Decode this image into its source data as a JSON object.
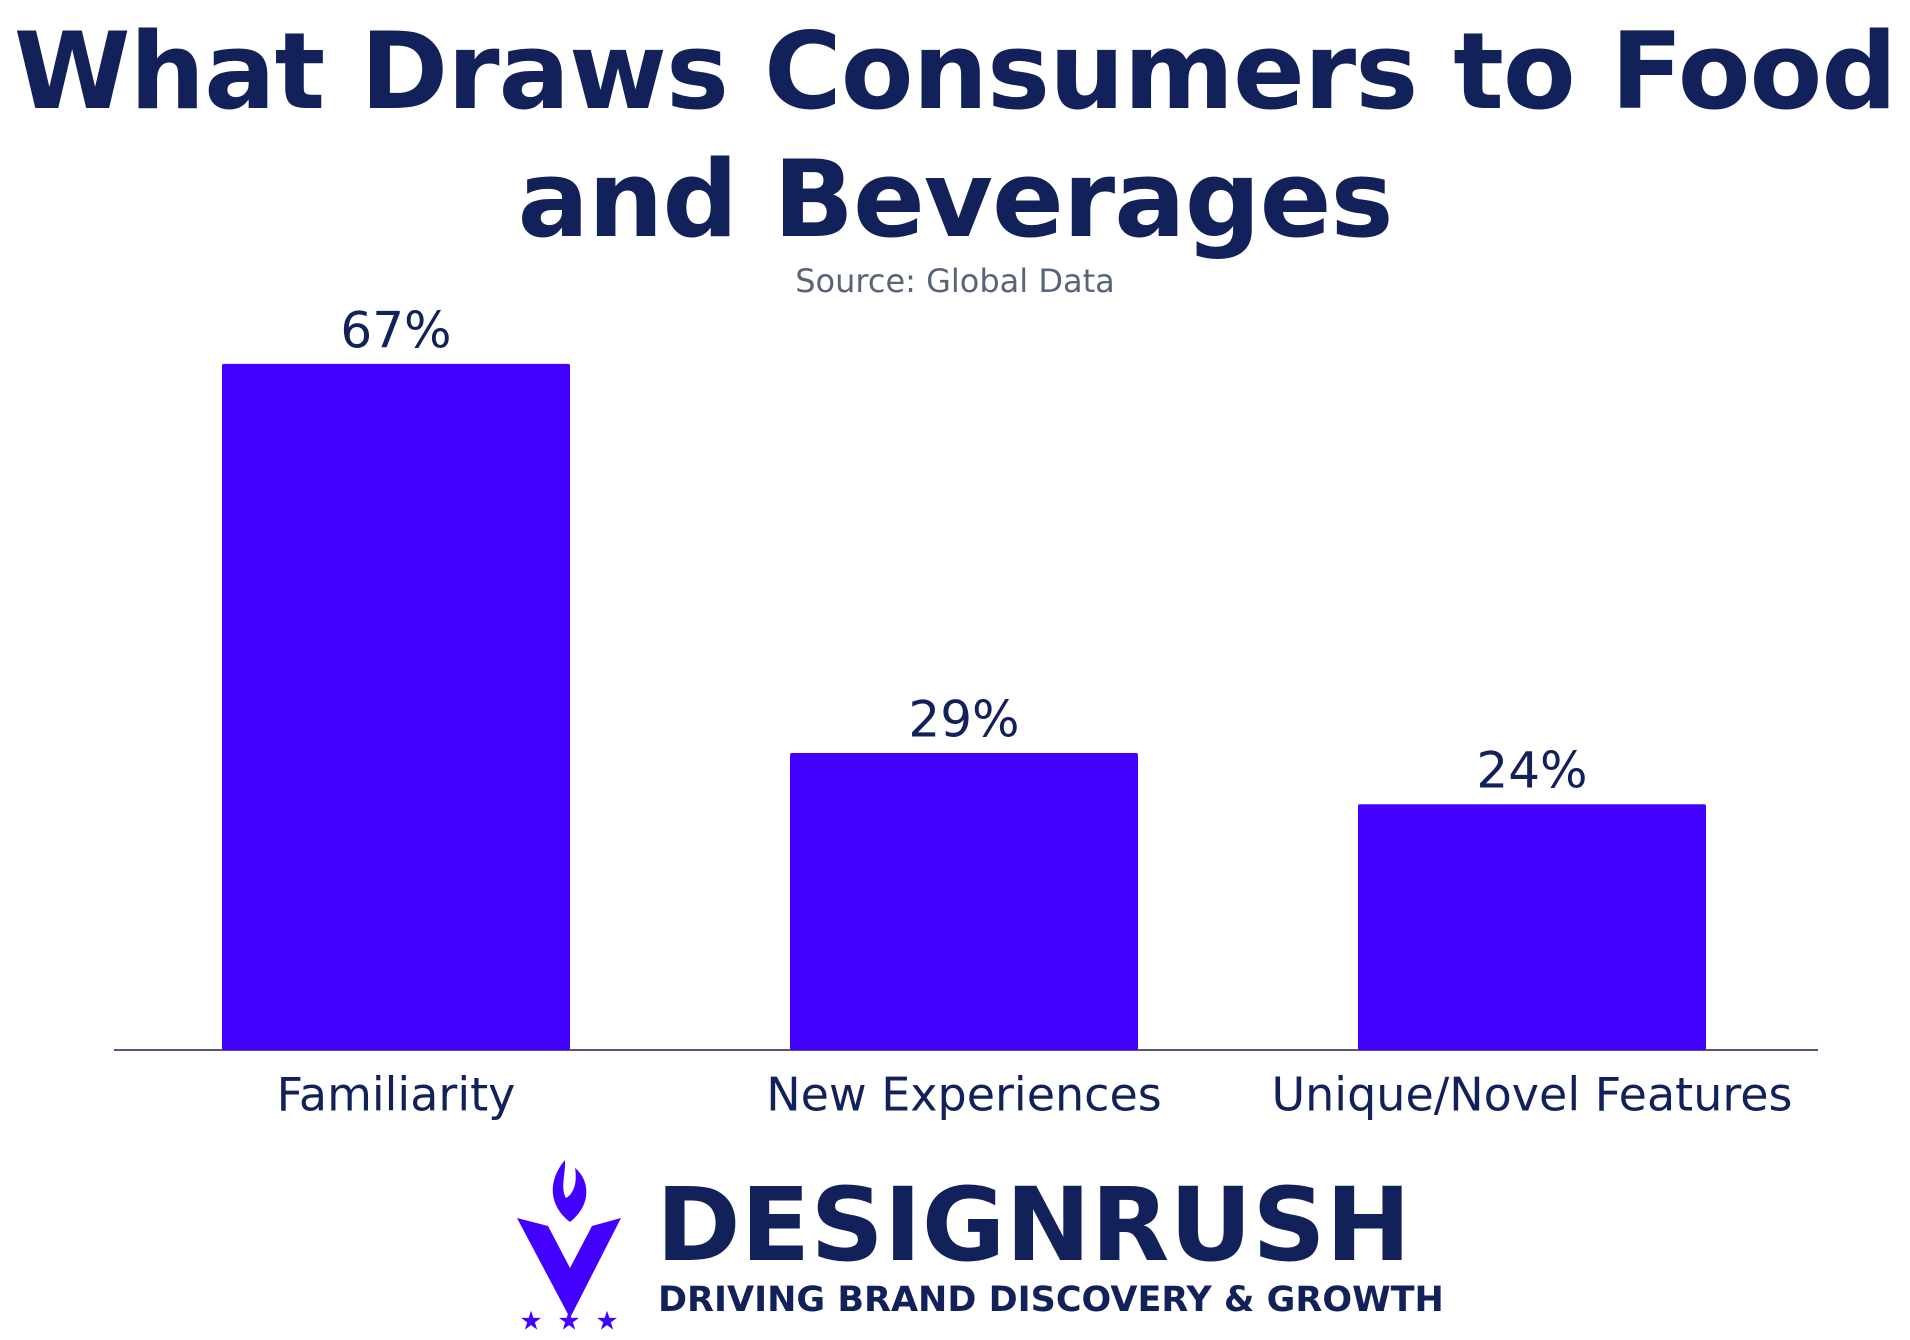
{
  "chart_data": {
    "type": "bar",
    "title": "What Draws Consumers to Food and Beverages",
    "subtitle": "Source: Global Data",
    "categories": [
      "Familiarity",
      "New Experiences",
      "Unique/Novel Features"
    ],
    "values": [
      67,
      29,
      24
    ],
    "value_labels": [
      "67%",
      "29%",
      "24%"
    ],
    "color": "#4200ff"
  },
  "logo": {
    "name": "DESIGNRUSH",
    "tagline": "DRIVING BRAND DISCOVERY & GROWTH"
  }
}
